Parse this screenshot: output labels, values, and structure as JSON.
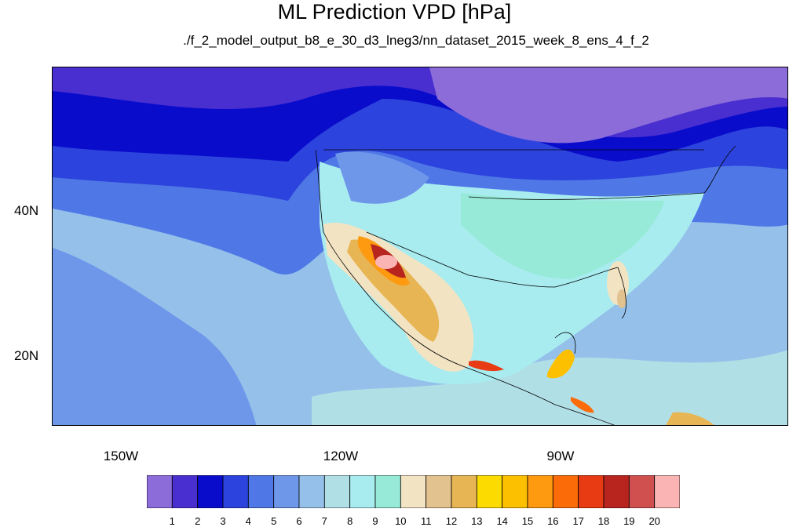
{
  "title": "ML Prediction VPD [hPa]",
  "subtitle": "./f_2_model_output_b8_e_30_d3_lneg3/nn_dataset_2015_week_8_ens_4_f_2",
  "lat_labels": [
    "40N",
    "20N"
  ],
  "lon_labels": [
    "150W",
    "120W",
    "90W"
  ],
  "colorbar": {
    "levels": [
      "1",
      "2",
      "3",
      "4",
      "5",
      "6",
      "7",
      "8",
      "9",
      "10",
      "11",
      "12",
      "13",
      "14",
      "15",
      "16",
      "17",
      "18",
      "19",
      "20"
    ],
    "colors": [
      "#8b6cd9",
      "#4a2fd0",
      "#0a0ccc",
      "#2c44dd",
      "#4f78e6",
      "#6e97ea",
      "#94c0ea",
      "#b1dfe6",
      "#a8ecf0",
      "#97ead8",
      "#f2e3c3",
      "#e2c28f",
      "#e8b554",
      "#fcdc00",
      "#fdc000",
      "#fd9a10",
      "#fb6b08",
      "#e83a13",
      "#b8241e",
      "#d05050",
      "#fab4b4"
    ]
  }
}
